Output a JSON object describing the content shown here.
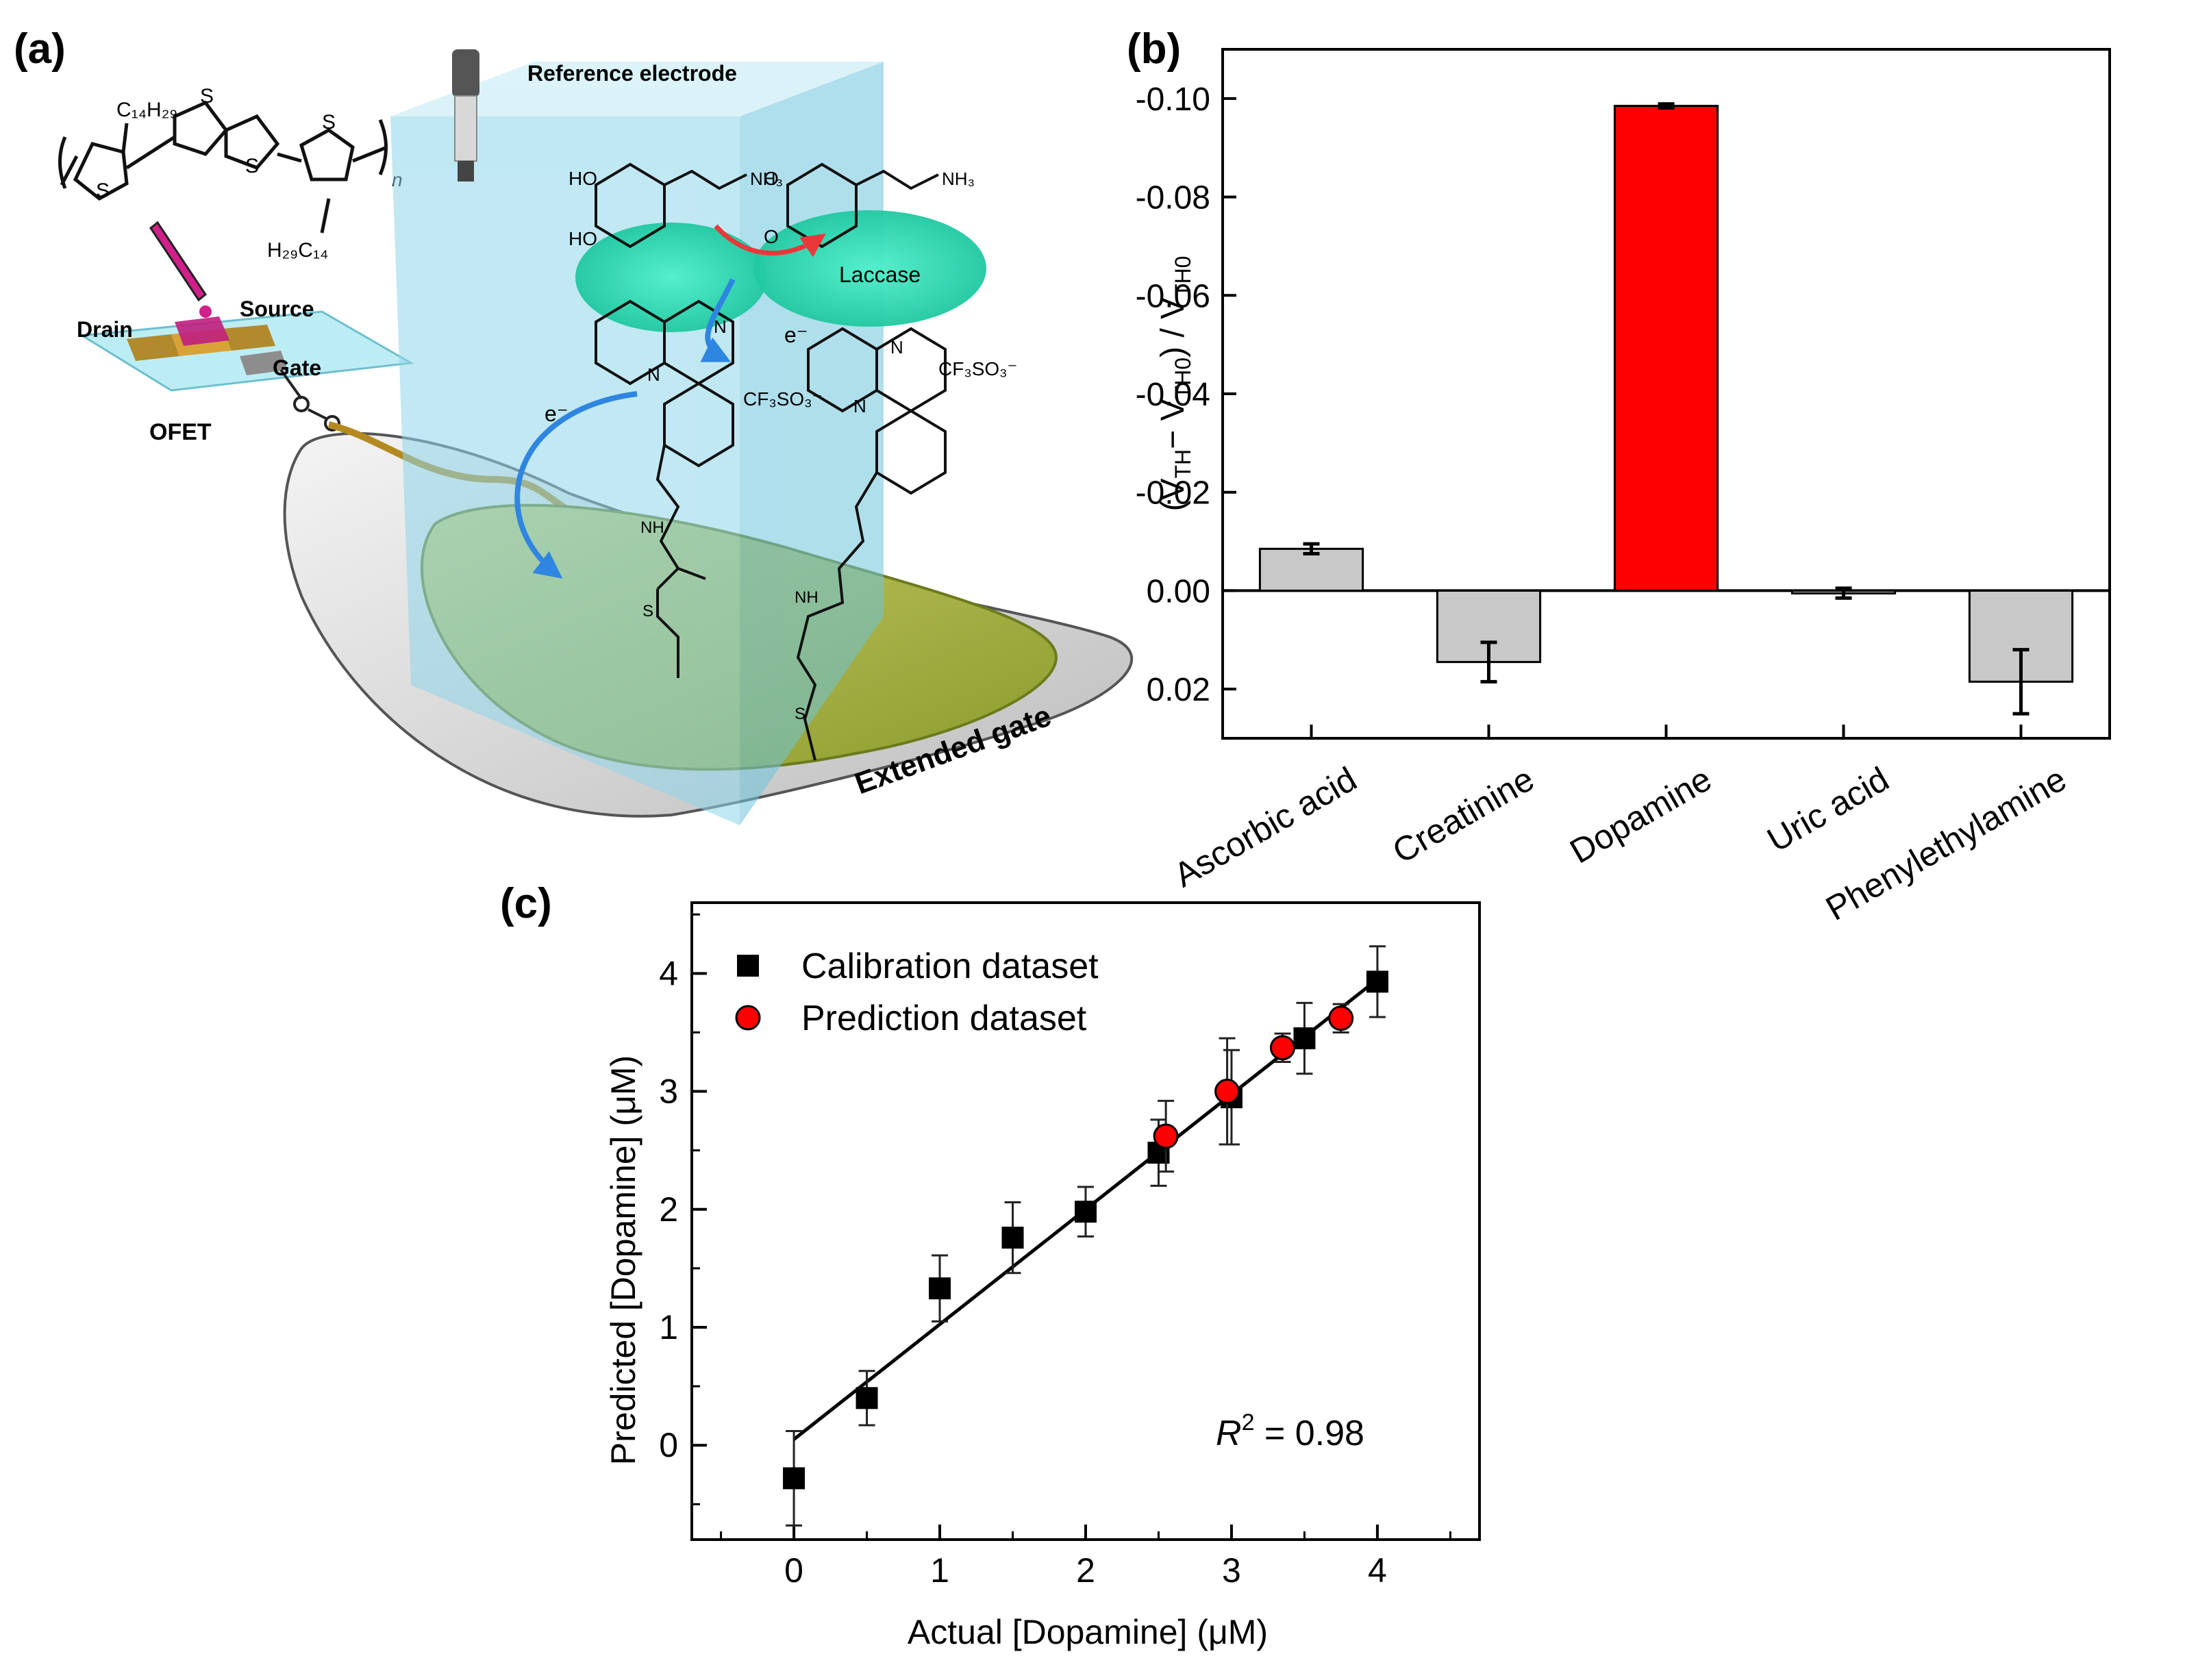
{
  "panel_a": {
    "label": "(a)",
    "reference_electrode": "Reference electrode",
    "laccase": "Laccase",
    "drain": "Drain",
    "source": "Source",
    "gate": "Gate",
    "ofet": "OFET",
    "extended_gate": "Extended gate",
    "electron": "e⁻",
    "counter_ion": "CF₃SO₃⁻",
    "nh3": "NH₃",
    "ho": "HO",
    "o": "O",
    "nh": "NH",
    "s": "S",
    "n": "N",
    "polymer_sub_top": "C₁₄H₂₉",
    "polymer_sub_bottom": "H₂₉C₁₄",
    "polymer_n": "n",
    "colors": {
      "prism": "#8ed6ea",
      "enzyme": "#2ee0b8",
      "gate": "#a8b64a",
      "arrow_blue": "#2f86e0",
      "arrow_red": "#e8383a",
      "pen": "#d0208a"
    }
  },
  "panel_b": {
    "label": "(b)",
    "ylabel_parts": [
      "(V",
      "TH",
      "− V",
      "TH0",
      ") / V",
      "TH0"
    ],
    "chart_data": {
      "type": "bar",
      "categories": [
        "Ascorbic acid",
        "Creatinine",
        "Dopamine",
        "Uric acid",
        "Phenylethylamine"
      ],
      "values": [
        -0.0085,
        0.0145,
        -0.0985,
        0.0005,
        0.0185
      ],
      "errors": [
        0.001,
        0.004,
        0.0004,
        0.001,
        0.0065
      ],
      "colors": [
        "#c8c8c8",
        "#c8c8c8",
        "#ff0000",
        "#c8c8c8",
        "#c8c8c8"
      ],
      "ylim": [
        -0.11,
        0.03
      ],
      "yaxis_inverted": true,
      "yticks": [
        -0.1,
        -0.08,
        -0.06,
        -0.04,
        -0.02,
        0.0,
        0.02
      ],
      "ytick_labels": [
        "-0.10",
        "-0.08",
        "-0.06",
        "-0.04",
        "-0.02",
        "0.00",
        "0.02"
      ],
      "xlabel": "",
      "ylabel": "(VTH − VTH0) / VTH0"
    }
  },
  "panel_c": {
    "label": "(c)",
    "chart_data": {
      "type": "scatter",
      "xlabel": "Actual [Dopamine] (μM)",
      "ylabel": "Predicted [Dopamine] (μM)",
      "xlim": [
        -0.7,
        4.7
      ],
      "ylim": [
        -0.8,
        4.6
      ],
      "xticks": [
        0,
        1,
        2,
        3,
        4
      ],
      "yticks": [
        0,
        1,
        2,
        3,
        4
      ],
      "series": [
        {
          "name": "Calibration dataset",
          "marker": "square",
          "color": "#000000",
          "x": [
            0,
            0.5,
            1,
            1.5,
            2,
            2.5,
            3,
            3.5,
            4
          ],
          "y": [
            -0.28,
            0.4,
            1.33,
            1.76,
            1.98,
            2.48,
            2.95,
            3.45,
            3.93
          ],
          "err": [
            0.4,
            0.23,
            0.28,
            0.3,
            0.21,
            0.28,
            0.4,
            0.3,
            0.3
          ]
        },
        {
          "name": "Prediction dataset",
          "marker": "circle",
          "color": "#ff0000",
          "x": [
            2.55,
            2.97,
            3.35,
            3.75
          ],
          "y": [
            2.62,
            3.0,
            3.37,
            3.62
          ],
          "err": [
            0.3,
            0.45,
            0.12,
            0.12
          ]
        }
      ],
      "fit_line": {
        "x": [
          0,
          4
        ],
        "y": [
          0.05,
          3.95
        ]
      },
      "annotation": "R² = 0.98",
      "annotation_r": "R",
      "annotation_sup": "2",
      "annotation_rest": " = 0.98"
    }
  }
}
